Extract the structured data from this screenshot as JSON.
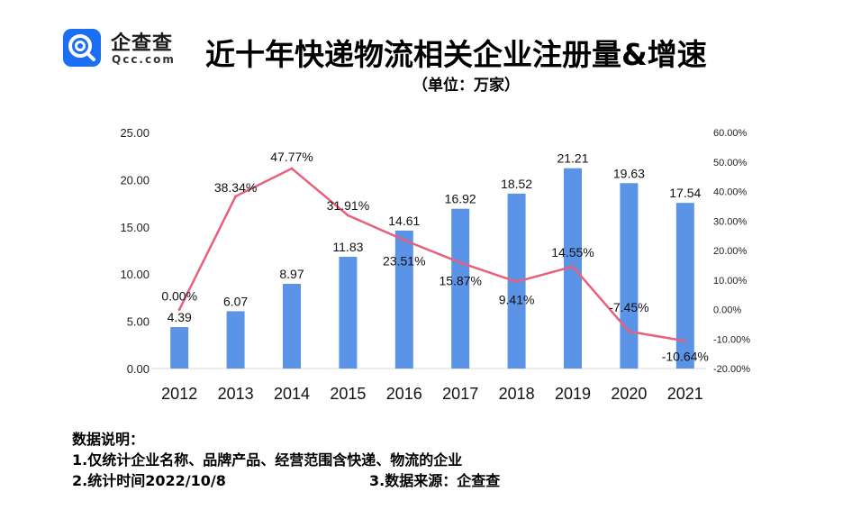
{
  "brand": {
    "name": "企查查",
    "sub": "Qcc.com",
    "color": "#1c6ff2"
  },
  "title": "近十年快递物流相关企业注册量&增速",
  "unit": "（单位：万家）",
  "chart_data": {
    "type": "bar",
    "categories": [
      "2012",
      "2013",
      "2014",
      "2015",
      "2016",
      "2017",
      "2018",
      "2019",
      "2020",
      "2021"
    ],
    "series": [
      {
        "type": "bar",
        "values": [
          4.39,
          6.07,
          8.97,
          11.83,
          14.61,
          16.92,
          18.52,
          21.21,
          19.63,
          17.54
        ],
        "labels": [
          "4.39",
          "6.07",
          "8.97",
          "11.83",
          "14.61",
          "16.92",
          "18.52",
          "21.21",
          "19.63",
          "17.54"
        ],
        "color": "#5b93e6"
      },
      {
        "type": "line",
        "axis": "right",
        "values": [
          0.0,
          38.34,
          47.77,
          31.91,
          23.51,
          15.87,
          9.41,
          14.55,
          -7.45,
          -10.64
        ],
        "labels": [
          "0.00%",
          "38.34%",
          "47.77%",
          "31.91%",
          "23.51%",
          "15.87%",
          "9.41%",
          "14.55%",
          "-7.45%",
          "-10.64%"
        ],
        "color": "#e8607a"
      }
    ],
    "left_axis": {
      "ylim": [
        0,
        25
      ],
      "ticks": [
        "0.00",
        "5.00",
        "10.00",
        "15.00",
        "20.00",
        "25.00"
      ]
    },
    "right_axis": {
      "ylim": [
        -20,
        60
      ],
      "ticks": [
        "-20.00%",
        "-10.00%",
        "0.00%",
        "10.00%",
        "20.00%",
        "30.00%",
        "40.00%",
        "50.00%",
        "60.00%"
      ]
    },
    "grid": false
  },
  "notes": {
    "heading": "数据说明：",
    "line1": "1.仅统计企业名称、品牌产品、经营范围含快递、物流的企业",
    "line2": "2.统计时间2022/10/8",
    "line3": "3.数据来源：企查查"
  }
}
